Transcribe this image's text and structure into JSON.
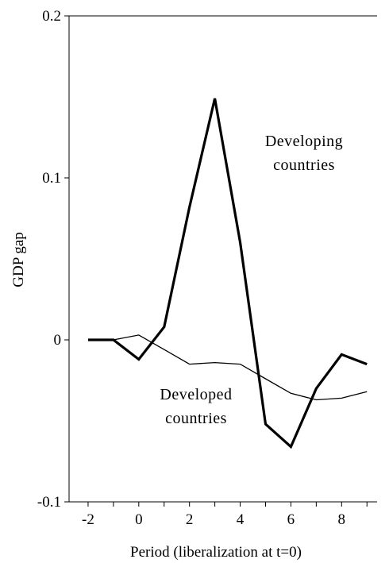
{
  "chart_data": {
    "type": "line",
    "title": "",
    "xlabel": "Period (liberalization at t=0)",
    "ylabel": "GDP gap",
    "xlim": [
      -2.75,
      9.4
    ],
    "ylim": [
      -0.1,
      0.2
    ],
    "x_ticks": [
      -2,
      0,
      2,
      4,
      6,
      8
    ],
    "x_tick_labels": [
      "-2",
      "0",
      "2",
      "4",
      "6",
      "8"
    ],
    "y_ticks": [
      -0.1,
      0,
      0.1,
      0.2
    ],
    "y_tick_labels": [
      "-0.1",
      "0",
      "0.1",
      "0.2"
    ],
    "grid": false,
    "legend": "none",
    "series": [
      {
        "name": "Developing countries",
        "style": "thick",
        "x": [
          -2,
          -1,
          0,
          1,
          2,
          3,
          4,
          5,
          6,
          7,
          8,
          9
        ],
        "y": [
          0.0,
          0.0,
          -0.012,
          0.008,
          0.082,
          0.149,
          0.06,
          -0.052,
          -0.066,
          -0.03,
          -0.009,
          -0.015
        ]
      },
      {
        "name": "Developed countries",
        "style": "thin",
        "x": [
          -2,
          -1,
          0,
          1,
          2,
          3,
          4,
          5,
          6,
          7,
          8,
          9
        ],
        "y": [
          0.0,
          0.0,
          0.003,
          -0.006,
          -0.015,
          -0.014,
          -0.015,
          -0.024,
          -0.033,
          -0.037,
          -0.036,
          -0.032
        ]
      }
    ],
    "annotations": [
      {
        "text_lines": [
          "Developing",
          "countries"
        ],
        "series": "Developing countries"
      },
      {
        "text_lines": [
          "Developed",
          "countries"
        ],
        "series": "Developed countries"
      }
    ]
  }
}
